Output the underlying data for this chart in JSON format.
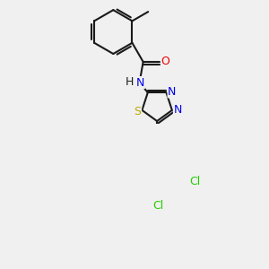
{
  "bg_color": "#f0f0f0",
  "bond_color": "#1a1a1a",
  "bond_width": 1.5,
  "dbo": 0.055,
  "atom_colors": {
    "N": "#0000ee",
    "O": "#ee0000",
    "S": "#bbaa00",
    "Cl": "#22cc00",
    "C": "#1a1a1a"
  },
  "font_size": 9,
  "figsize": [
    3.0,
    3.0
  ],
  "dpi": 100
}
